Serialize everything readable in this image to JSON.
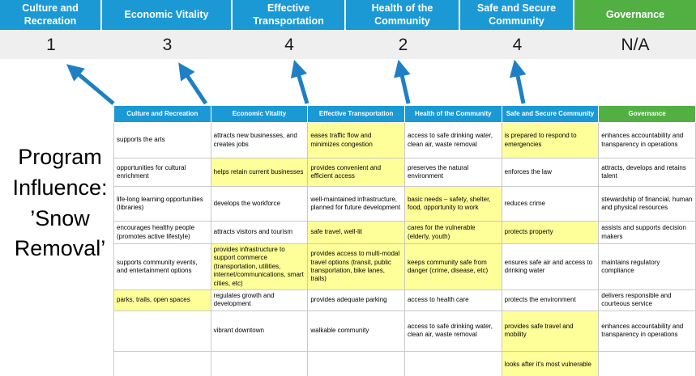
{
  "program_label": "Program Influence: ’Snow Removal’",
  "colors": {
    "header_blue": "#1b99d5",
    "header_green": "#52b043",
    "highlight_yellow": "#ffff99",
    "arrow_blue": "#1f7fc4",
    "score_band_gray": "#efefef"
  },
  "summary": {
    "columns": [
      {
        "label": "Culture and Recreation",
        "score": "1",
        "color": "blue"
      },
      {
        "label": "Economic Vitality",
        "score": "3",
        "color": "blue"
      },
      {
        "label": "Effective Transportation",
        "score": "4",
        "color": "blue"
      },
      {
        "label": "Health of the Community",
        "score": "2",
        "color": "blue"
      },
      {
        "label": "Safe and Secure Community",
        "score": "4",
        "color": "blue"
      },
      {
        "label": "Governance",
        "score": "N/A",
        "color": "green"
      }
    ]
  },
  "matrix": {
    "headers": [
      "Culture and Recreation",
      "Economic Vitality",
      "Effective Transportation",
      "Health of the Community",
      "Safe and Secure Community",
      "Governance"
    ],
    "rows": [
      [
        {
          "text": "supports the arts",
          "hl": false
        },
        {
          "text": "attracts new businesses, and creates jobs",
          "hl": false
        },
        {
          "text": "eases traffic flow and minimizes congestion",
          "hl": true
        },
        {
          "text": "access to safe drinking water, clean air, waste removal",
          "hl": false
        },
        {
          "text": "is prepared to respond to emergencies",
          "hl": true
        },
        {
          "text": "enhances accountability and transparency in operations",
          "hl": false
        }
      ],
      [
        {
          "text": "opportunities for cultural enrichment",
          "hl": false
        },
        {
          "text": "helps retain current businesses",
          "hl": true
        },
        {
          "text": "provides convenient and efficient access",
          "hl": true
        },
        {
          "text": "preserves the natural environment",
          "hl": false
        },
        {
          "text": "enforces the law",
          "hl": false
        },
        {
          "text": "attracts, develops and retains talent",
          "hl": false
        }
      ],
      [
        {
          "text": "life-long learning opportunities (libraries)",
          "hl": false
        },
        {
          "text": "develops the workforce",
          "hl": false
        },
        {
          "text": "well-maintained infrastructure, planned for future development",
          "hl": false
        },
        {
          "text": "basic needs – safety, shelter, food, opportunity to work",
          "hl": true
        },
        {
          "text": "reduces crime",
          "hl": false
        },
        {
          "text": "stewardship of financial, human and physical resources",
          "hl": false
        }
      ],
      [
        {
          "text": "encourages healthy people (promotes active lifestyle)",
          "hl": false
        },
        {
          "text": "attracts visitors and tourism",
          "hl": false
        },
        {
          "text": "safe travel, well-lit",
          "hl": true
        },
        {
          "text": "cares for the vulnerable (elderly, youth)",
          "hl": true
        },
        {
          "text": "protects property",
          "hl": true
        },
        {
          "text": "assists and supports decision makers",
          "hl": false
        }
      ],
      [
        {
          "text": "supports community events, and entertainment options",
          "hl": false
        },
        {
          "text": "provides infrastructure to support commerce (transportation, utilities, internet/communications, smart cities, etc)",
          "hl": true
        },
        {
          "text": "provides access to multi-modal travel options (transit, public transportation, bike lanes, trails)",
          "hl": true
        },
        {
          "text": "keeps community safe from danger (crime, disease, etc)",
          "hl": true
        },
        {
          "text": "ensures safe air and access to drinking water",
          "hl": false
        },
        {
          "text": "maintains regulatory compliance",
          "hl": false
        }
      ],
      [
        {
          "text": "parks, trails, open spaces",
          "hl": true
        },
        {
          "text": "regulates growth and development",
          "hl": false
        },
        {
          "text": "provides adequate parking",
          "hl": false
        },
        {
          "text": "access to health care",
          "hl": false
        },
        {
          "text": "protects the environment",
          "hl": false
        },
        {
          "text": "delivers responsible and courteous service",
          "hl": false
        }
      ],
      [
        {
          "text": "",
          "hl": false
        },
        {
          "text": "vibrant downtown",
          "hl": false
        },
        {
          "text": "walkable community",
          "hl": false
        },
        {
          "text": "access to safe drinking water, clean air, waste removal",
          "hl": false
        },
        {
          "text": "provides safe travel and mobility",
          "hl": true
        },
        {
          "text": "enhances accountability and transparency in operations",
          "hl": false
        }
      ],
      [
        {
          "text": "",
          "hl": false
        },
        {
          "text": "",
          "hl": false
        },
        {
          "text": "",
          "hl": false
        },
        {
          "text": "",
          "hl": false
        },
        {
          "text": "looks after it's most vulnerable",
          "hl": true
        },
        {
          "text": "",
          "hl": false
        }
      ]
    ]
  }
}
